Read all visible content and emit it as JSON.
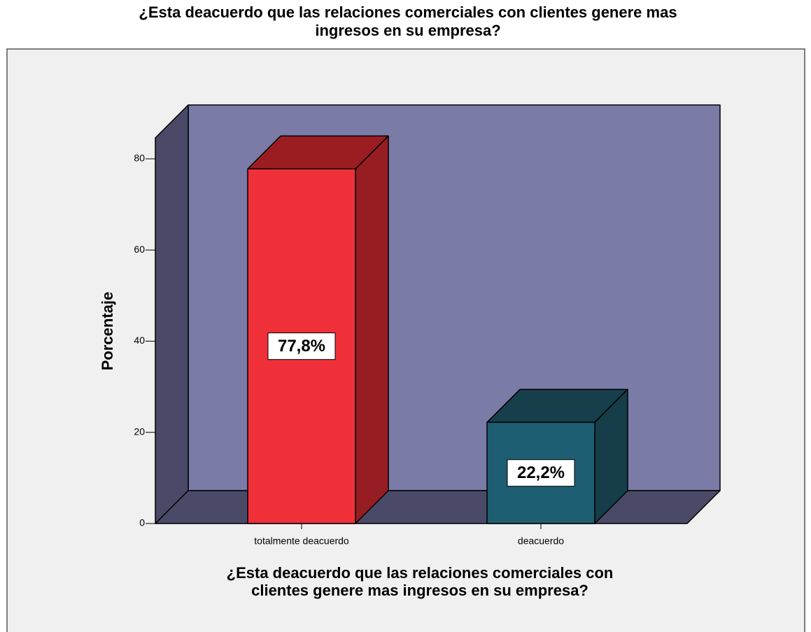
{
  "chart_data": {
    "type": "bar3d",
    "title": [
      "¿Esta deacuerdo que las relaciones comerciales con clientes genere mas",
      "ingresos en su empresa?"
    ],
    "x_label": [
      "¿Esta deacuerdo que las relaciones comerciales con",
      "clientes genere mas ingresos en su empresa?"
    ],
    "y_label": "Porcentaje",
    "categories": [
      "totalmente deacuerdo",
      "deacuerdo"
    ],
    "values": [
      77.8,
      22.2
    ],
    "value_labels": [
      "77,8%",
      "22,2%"
    ],
    "colors": [
      {
        "front": "#ef3038",
        "top": "#9b1d22",
        "side": "#961d22"
      },
      {
        "front": "#1d5e72",
        "top": "#173e4b",
        "side": "#163d4a"
      }
    ],
    "ylim": [
      0,
      84.6
    ],
    "yticks": [
      0,
      20,
      40,
      60,
      80
    ]
  }
}
